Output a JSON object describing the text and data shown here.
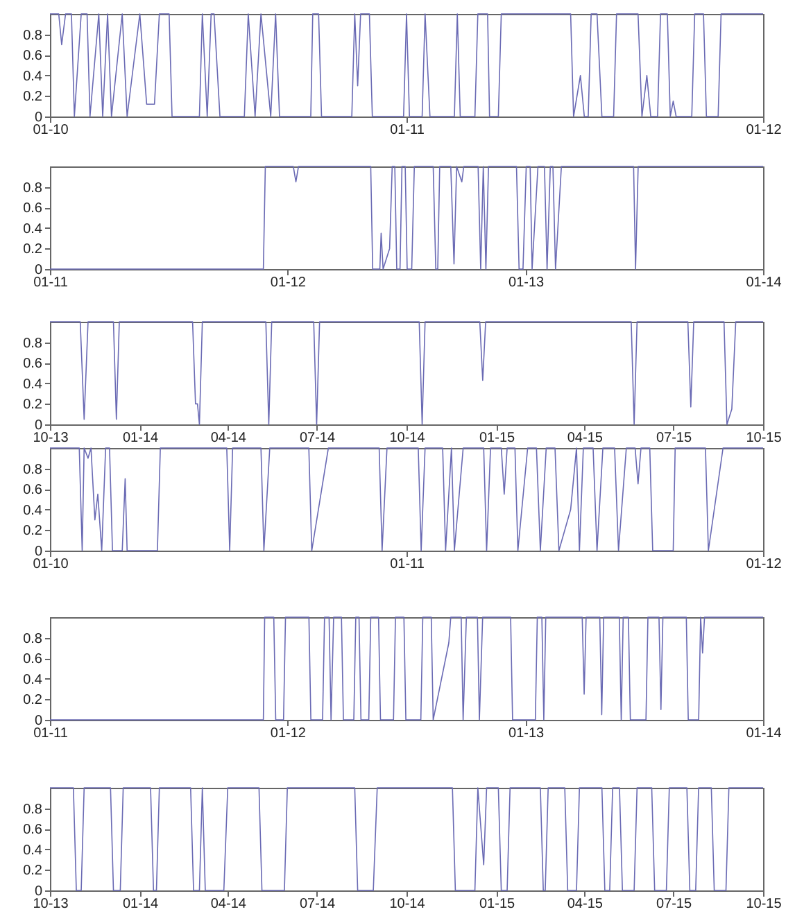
{
  "chart_data": [
    {
      "type": "line",
      "color": "#6a6ab4",
      "ylim": [
        0,
        1
      ],
      "yticks": [
        0,
        0.2,
        0.4,
        0.6,
        0.8
      ],
      "xlim": [
        "2010-01-01",
        "2012-01-01"
      ],
      "xticks": [
        {
          "value": "2010-01-01",
          "label": "01-10"
        },
        {
          "value": "2011-01-01",
          "label": "01-11"
        },
        {
          "value": "2012-01-01",
          "label": "01-12"
        }
      ],
      "x": [
        "2010-01-01",
        "2010-01-10",
        "2010-01-13",
        "2010-01-17",
        "2010-01-23",
        "2010-01-26",
        "2010-02-02",
        "2010-02-08",
        "2010-02-11",
        "2010-02-20",
        "2010-02-24",
        "2010-03-01",
        "2010-03-05",
        "2010-03-16",
        "2010-03-21",
        "2010-04-03",
        "2010-04-10",
        "2010-04-18",
        "2010-04-23",
        "2010-05-03",
        "2010-05-06",
        "2010-06-03",
        "2010-06-06",
        "2010-06-11",
        "2010-06-15",
        "2010-06-18",
        "2010-06-24",
        "2010-07-19",
        "2010-07-23",
        "2010-07-30",
        "2010-08-05",
        "2010-08-12",
        "2010-08-15",
        "2010-08-20",
        "2010-08-24",
        "2010-09-25",
        "2010-09-27",
        "2010-10-03",
        "2010-10-06",
        "2010-11-06",
        "2010-11-09",
        "2010-11-12",
        "2010-11-15",
        "2010-11-24",
        "2010-11-27",
        "2010-12-29",
        "2011-01-01",
        "2011-01-04",
        "2011-01-17",
        "2011-01-20",
        "2011-01-25",
        "2011-02-19",
        "2011-02-22",
        "2011-02-25",
        "2011-03-12",
        "2011-03-15",
        "2011-03-25",
        "2011-03-27",
        "2011-04-05",
        "2011-04-08",
        "2011-06-18",
        "2011-06-21",
        "2011-06-28",
        "2011-07-02",
        "2011-07-06",
        "2011-07-09",
        "2011-07-15",
        "2011-07-20",
        "2011-08-01",
        "2011-08-04",
        "2011-08-26",
        "2011-08-30",
        "2011-09-04",
        "2011-09-08",
        "2011-09-15",
        "2011-09-18",
        "2011-09-25",
        "2011-09-28",
        "2011-10-01",
        "2011-10-04",
        "2011-10-20",
        "2011-10-23",
        "2011-11-01",
        "2011-11-04",
        "2011-11-16",
        "2011-11-19",
        "2012-01-01"
      ],
      "values": [
        1,
        1,
        0.7,
        1,
        1,
        0,
        1,
        1,
        0,
        1,
        0,
        1,
        0,
        1,
        0,
        1,
        0.12,
        0.12,
        1,
        1,
        0,
        0,
        1,
        0,
        1,
        1,
        0,
        0,
        1,
        0,
        1,
        0.3,
        0,
        1,
        0,
        0,
        1,
        1,
        0,
        0,
        1,
        0.3,
        1,
        1,
        0,
        0,
        1,
        0,
        0,
        1,
        0,
        0,
        1,
        0,
        0,
        1,
        1,
        0,
        0,
        1,
        1,
        0,
        0.4,
        0,
        0,
        1,
        1,
        0,
        0,
        1,
        1,
        0,
        0.4,
        0,
        0,
        1,
        1,
        0,
        0.15,
        0,
        0,
        1,
        1,
        0,
        0,
        1,
        1
      ]
    },
    {
      "type": "line",
      "color": "#6a6ab4",
      "ylim": [
        0,
        1
      ],
      "yticks": [
        0,
        0.2,
        0.4,
        0.6,
        0.8
      ],
      "xlim": [
        "2011-01-01",
        "2014-01-01"
      ],
      "xticks": [
        {
          "value": "2011-01-01",
          "label": "01-11"
        },
        {
          "value": "2012-01-01",
          "label": "01-12"
        },
        {
          "value": "2013-01-01",
          "label": "01-13"
        },
        {
          "value": "2014-01-01",
          "label": "01-14"
        }
      ],
      "x": [
        "2011-01-01",
        "2011-11-25",
        "2011-11-28",
        "2012-01-10",
        "2012-01-14",
        "2012-01-18",
        "2012-05-08",
        "2012-05-11",
        "2012-05-22",
        "2012-05-24",
        "2012-05-27",
        "2012-06-06",
        "2012-06-10",
        "2012-06-14",
        "2012-06-17",
        "2012-06-22",
        "2012-06-25",
        "2012-06-30",
        "2012-07-03",
        "2012-07-10",
        "2012-07-14",
        "2012-08-12",
        "2012-08-16",
        "2012-08-19",
        "2012-08-22",
        "2012-09-08",
        "2012-09-13",
        "2012-09-17",
        "2012-09-25",
        "2012-09-28",
        "2012-10-20",
        "2012-10-24",
        "2012-10-28",
        "2012-11-01",
        "2012-11-05",
        "2012-12-18",
        "2012-12-22",
        "2012-12-28",
        "2013-01-02",
        "2013-01-08",
        "2013-01-11",
        "2013-01-20",
        "2013-01-30",
        "2013-02-03",
        "2013-02-08",
        "2013-02-12",
        "2013-02-16",
        "2013-02-25",
        "2013-06-16",
        "2013-06-19",
        "2013-06-23",
        "2014-01-01"
      ],
      "values": [
        0,
        0,
        1,
        1,
        0.85,
        1,
        1,
        0,
        0,
        0.35,
        0,
        0.2,
        1,
        1,
        0,
        0,
        1,
        1,
        0,
        0,
        1,
        1,
        0,
        0,
        1,
        1,
        0.05,
        1,
        0.85,
        1,
        1,
        0,
        1,
        0,
        1,
        1,
        0,
        0,
        1,
        1,
        0,
        1,
        1,
        0,
        1,
        1,
        0,
        1,
        1,
        0,
        1,
        1
      ]
    },
    {
      "type": "line",
      "color": "#6a6ab4",
      "ylim": [
        0,
        1
      ],
      "yticks": [
        0,
        0.2,
        0.4,
        0.6,
        0.8
      ],
      "xlim": [
        "2013-10-01",
        "2015-10-01"
      ],
      "xticks": [
        {
          "value": "2013-10-01",
          "label": "10-13"
        },
        {
          "value": "2014-01-01",
          "label": "01-14"
        },
        {
          "value": "2014-04-01",
          "label": "04-14"
        },
        {
          "value": "2014-07-01",
          "label": "07-14"
        },
        {
          "value": "2014-10-01",
          "label": "10-14"
        },
        {
          "value": "2015-01-01",
          "label": "01-15"
        },
        {
          "value": "2015-04-01",
          "label": "04-15"
        },
        {
          "value": "2015-07-01",
          "label": "07-15"
        },
        {
          "value": "2015-10-01",
          "label": "10-15"
        }
      ],
      "x": [
        "2013-10-01",
        "2013-11-01",
        "2013-11-05",
        "2013-11-09",
        "2013-12-05",
        "2013-12-08",
        "2013-12-11",
        "2014-02-24",
        "2014-02-27",
        "2014-03-01",
        "2014-03-03",
        "2014-03-06",
        "2014-05-10",
        "2014-05-13",
        "2014-05-16",
        "2014-06-28",
        "2014-07-01",
        "2014-07-04",
        "2014-10-14",
        "2014-10-17",
        "2014-10-20",
        "2014-12-15",
        "2014-12-18",
        "2014-12-21",
        "2015-05-19",
        "2015-05-22",
        "2015-05-25",
        "2015-07-16",
        "2015-07-19",
        "2015-07-22",
        "2015-08-22",
        "2015-08-25",
        "2015-08-30",
        "2015-09-03",
        "2015-10-01"
      ],
      "values": [
        1,
        1,
        0.05,
        1,
        1,
        0.05,
        1,
        1,
        0.2,
        0.2,
        0,
        1,
        1,
        0,
        1,
        1,
        0,
        1,
        1,
        0,
        1,
        1,
        0.43,
        1,
        1,
        0,
        1,
        1,
        0.17,
        1,
        1,
        0,
        0.15,
        1,
        1
      ]
    },
    {
      "type": "line",
      "color": "#6a6ab4",
      "ylim": [
        0,
        1
      ],
      "yticks": [
        0,
        0.2,
        0.4,
        0.6,
        0.8
      ],
      "xlim": [
        "2010-01-01",
        "2012-01-01"
      ],
      "xticks": [
        {
          "value": "2010-01-01",
          "label": "01-10"
        },
        {
          "value": "2011-01-01",
          "label": "01-11"
        },
        {
          "value": "2012-01-01",
          "label": "01-12"
        }
      ],
      "x": [
        "2010-01-01",
        "2010-01-31",
        "2010-02-03",
        "2010-02-05",
        "2010-02-09",
        "2010-02-12",
        "2010-02-16",
        "2010-02-19",
        "2010-02-23",
        "2010-02-27",
        "2010-03-03",
        "2010-03-06",
        "2010-03-16",
        "2010-03-19",
        "2010-03-21",
        "2010-04-21",
        "2010-04-24",
        "2010-07-01",
        "2010-07-04",
        "2010-07-07",
        "2010-08-05",
        "2010-08-08",
        "2010-08-14",
        "2010-09-23",
        "2010-09-26",
        "2010-10-13",
        "2010-12-04",
        "2010-12-07",
        "2010-12-12",
        "2011-01-13",
        "2011-01-16",
        "2011-01-20",
        "2011-02-07",
        "2011-02-10",
        "2011-02-16",
        "2011-02-19",
        "2011-02-28",
        "2011-03-21",
        "2011-03-24",
        "2011-03-28",
        "2011-04-08",
        "2011-04-11",
        "2011-04-14",
        "2011-04-22",
        "2011-04-25",
        "2011-05-05",
        "2011-05-14",
        "2011-05-18",
        "2011-05-24",
        "2011-06-02",
        "2011-06-06",
        "2011-06-18",
        "2011-06-24",
        "2011-06-27",
        "2011-07-01",
        "2011-07-11",
        "2011-07-15",
        "2011-07-21",
        "2011-08-02",
        "2011-08-06",
        "2011-08-14",
        "2011-08-23",
        "2011-08-26",
        "2011-08-29",
        "2011-09-07",
        "2011-09-10",
        "2011-10-01",
        "2011-10-03",
        "2011-11-03",
        "2011-11-06",
        "2011-11-21",
        "2012-01-01"
      ],
      "values": [
        1,
        1,
        0,
        1,
        0.9,
        1,
        0.3,
        0.55,
        0,
        1,
        1,
        0,
        0,
        0.7,
        0,
        0,
        1,
        1,
        0,
        1,
        1,
        0,
        1,
        1,
        0,
        1,
        1,
        0,
        1,
        1,
        0,
        1,
        1,
        0,
        1,
        0,
        1,
        1,
        0,
        1,
        1,
        0.55,
        1,
        1,
        0,
        1,
        1,
        0,
        1,
        1,
        0,
        0.4,
        1,
        0,
        1,
        1,
        0,
        1,
        1,
        0,
        1,
        1,
        0.65,
        1,
        1,
        0,
        0,
        1,
        1,
        0,
        1,
        1
      ]
    },
    {
      "type": "line",
      "color": "#6a6ab4",
      "ylim": [
        0,
        1
      ],
      "yticks": [
        0,
        0.2,
        0.4,
        0.6,
        0.8
      ],
      "xlim": [
        "2011-01-01",
        "2014-01-01"
      ],
      "xticks": [
        {
          "value": "2011-01-01",
          "label": "01-11"
        },
        {
          "value": "2012-01-01",
          "label": "01-12"
        },
        {
          "value": "2013-01-01",
          "label": "01-13"
        },
        {
          "value": "2014-01-01",
          "label": "01-14"
        }
      ],
      "x": [
        "2011-01-01",
        "2011-11-25",
        "2011-11-27",
        "2011-12-11",
        "2011-12-14",
        "2011-12-26",
        "2011-12-29",
        "2012-02-03",
        "2012-02-06",
        "2012-02-24",
        "2012-02-27",
        "2012-03-05",
        "2012-03-08",
        "2012-03-12",
        "2012-03-24",
        "2012-03-27",
        "2012-04-12",
        "2012-04-15",
        "2012-04-20",
        "2012-04-23",
        "2012-05-05",
        "2012-05-08",
        "2012-05-20",
        "2012-05-23",
        "2012-06-12",
        "2012-06-15",
        "2012-06-28",
        "2012-07-01",
        "2012-07-24",
        "2012-07-27",
        "2012-08-09",
        "2012-08-12",
        "2012-09-05",
        "2012-09-08",
        "2012-09-24",
        "2012-09-27",
        "2012-10-02",
        "2012-10-19",
        "2012-10-22",
        "2012-10-27",
        "2012-12-09",
        "2012-12-12",
        "2013-01-16",
        "2013-01-19",
        "2013-01-26",
        "2013-01-29",
        "2013-02-01",
        "2013-03-29",
        "2013-04-01",
        "2013-04-04",
        "2013-04-25",
        "2013-04-28",
        "2013-05-01",
        "2013-05-25",
        "2013-05-28",
        "2013-05-31",
        "2013-06-08",
        "2013-06-11",
        "2013-07-05",
        "2013-07-08",
        "2013-07-25",
        "2013-07-28",
        "2013-07-31",
        "2013-09-05",
        "2013-09-08",
        "2013-09-24",
        "2013-09-27",
        "2013-09-30",
        "2013-10-03",
        "2014-01-01"
      ],
      "values": [
        0,
        0,
        1,
        1,
        0,
        0,
        1,
        1,
        0,
        0,
        1,
        1,
        0,
        1,
        1,
        0,
        0,
        1,
        1,
        0,
        0,
        1,
        1,
        0,
        0,
        1,
        1,
        0,
        0,
        1,
        1,
        0,
        0.75,
        1,
        1,
        0,
        1,
        1,
        0,
        1,
        1,
        0,
        0,
        1,
        1,
        0,
        1,
        1,
        0.25,
        1,
        1,
        0.05,
        1,
        1,
        0,
        1,
        1,
        0,
        0,
        1,
        1,
        0.1,
        1,
        1,
        0,
        0,
        1,
        0.65,
        1,
        1
      ]
    },
    {
      "type": "line",
      "color": "#6a6ab4",
      "ylim": [
        0,
        1
      ],
      "yticks": [
        0,
        0.2,
        0.4,
        0.6,
        0.8
      ],
      "xlim": [
        "2013-10-01",
        "2015-10-01"
      ],
      "xticks": [
        {
          "value": "2013-10-01",
          "label": "10-13"
        },
        {
          "value": "2014-01-01",
          "label": "01-14"
        },
        {
          "value": "2014-04-01",
          "label": "04-14"
        },
        {
          "value": "2014-07-01",
          "label": "07-14"
        },
        {
          "value": "2014-10-01",
          "label": "10-14"
        },
        {
          "value": "2015-01-01",
          "label": "01-15"
        },
        {
          "value": "2015-04-01",
          "label": "04-15"
        },
        {
          "value": "2015-07-01",
          "label": "07-15"
        },
        {
          "value": "2015-10-01",
          "label": "10-15"
        }
      ],
      "x": [
        "2013-10-01",
        "2013-10-25",
        "2013-10-28",
        "2013-11-02",
        "2013-11-05",
        "2013-12-02",
        "2013-12-05",
        "2013-12-12",
        "2013-12-15",
        "2014-01-12",
        "2014-01-15",
        "2014-01-18",
        "2014-01-21",
        "2014-02-22",
        "2014-02-25",
        "2014-03-03",
        "2014-03-06",
        "2014-03-09",
        "2014-03-28",
        "2014-04-01",
        "2014-05-03",
        "2014-05-06",
        "2014-05-29",
        "2014-06-01",
        "2014-08-09",
        "2014-08-12",
        "2014-08-28",
        "2014-09-01",
        "2014-11-17",
        "2014-11-20",
        "2014-12-10",
        "2014-12-13",
        "2014-12-19",
        "2014-12-22",
        "2015-01-03",
        "2015-01-06",
        "2015-01-12",
        "2015-01-15",
        "2015-02-15",
        "2015-02-18",
        "2015-02-20",
        "2015-02-23",
        "2015-03-12",
        "2015-03-15",
        "2015-03-24",
        "2015-03-27",
        "2015-04-19",
        "2015-04-22",
        "2015-04-27",
        "2015-04-30",
        "2015-05-07",
        "2015-05-10",
        "2015-05-22",
        "2015-05-25",
        "2015-06-09",
        "2015-06-12",
        "2015-06-24",
        "2015-06-27",
        "2015-07-15",
        "2015-07-18",
        "2015-07-24",
        "2015-07-27",
        "2015-08-09",
        "2015-08-12",
        "2015-08-24",
        "2015-08-27",
        "2015-10-01"
      ],
      "values": [
        1,
        1,
        0,
        0,
        1,
        1,
        0,
        0,
        1,
        1,
        0,
        0,
        1,
        1,
        0,
        0,
        1,
        0,
        0,
        1,
        1,
        0,
        0,
        1,
        1,
        0,
        0,
        1,
        1,
        0,
        0,
        1,
        0.25,
        1,
        1,
        0,
        0,
        1,
        1,
        0,
        0,
        1,
        1,
        0,
        0,
        1,
        1,
        0,
        0,
        1,
        1,
        0,
        0,
        1,
        1,
        0,
        0,
        1,
        1,
        0,
        0,
        1,
        1,
        0,
        0,
        1,
        1
      ]
    }
  ]
}
